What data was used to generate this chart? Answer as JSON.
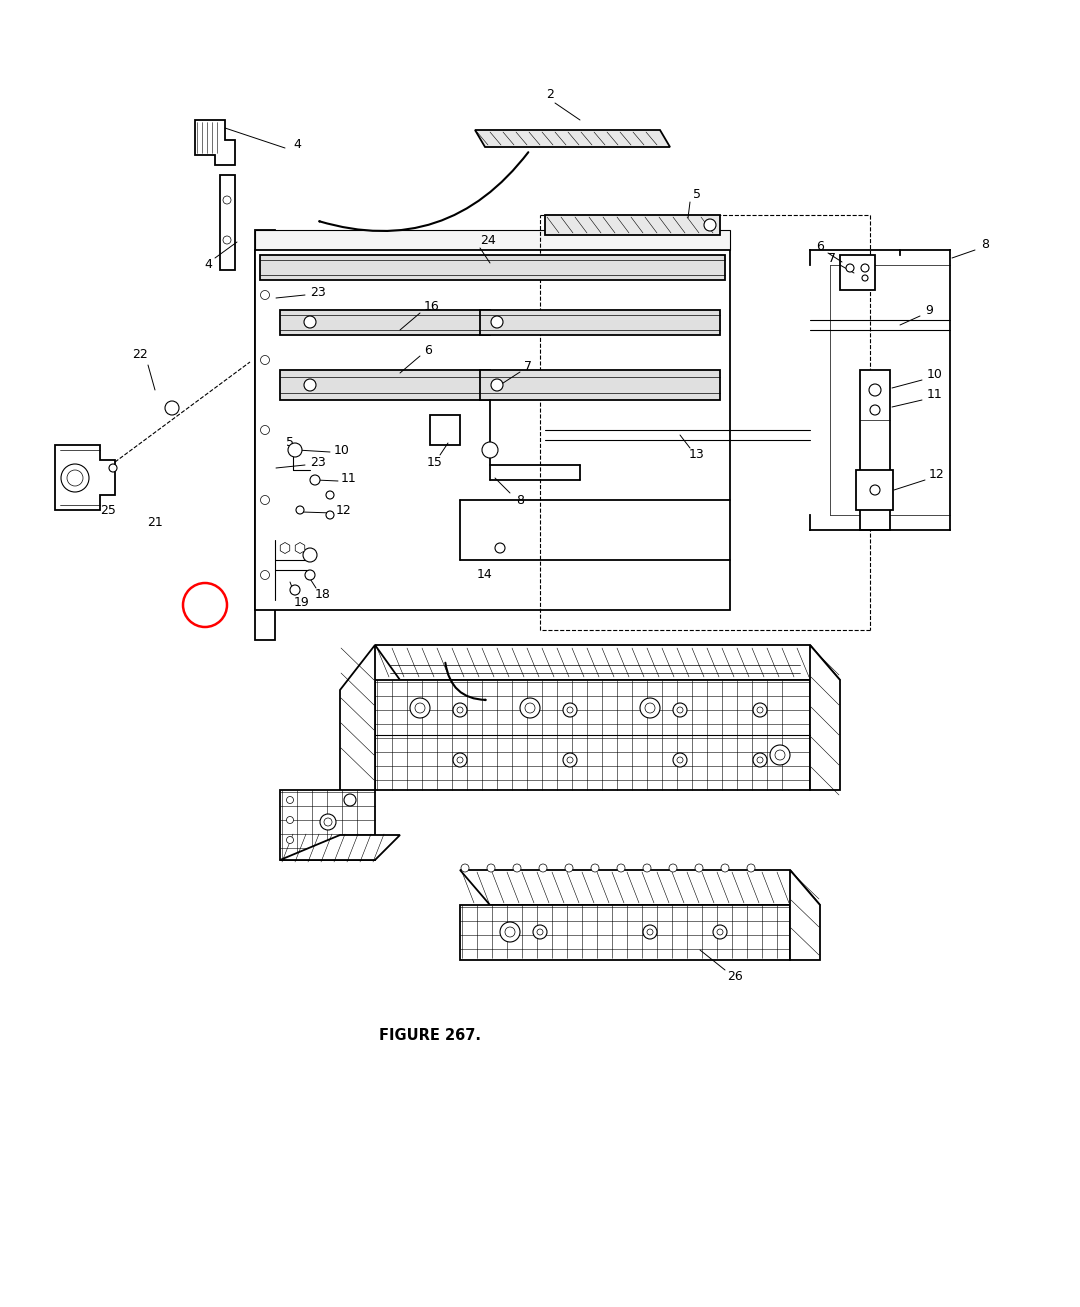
{
  "figure_caption": "FIGURE 267.",
  "background_color": "#ffffff",
  "line_color": "#000000",
  "fig_width": 10.8,
  "fig_height": 13.07,
  "dpi": 100
}
